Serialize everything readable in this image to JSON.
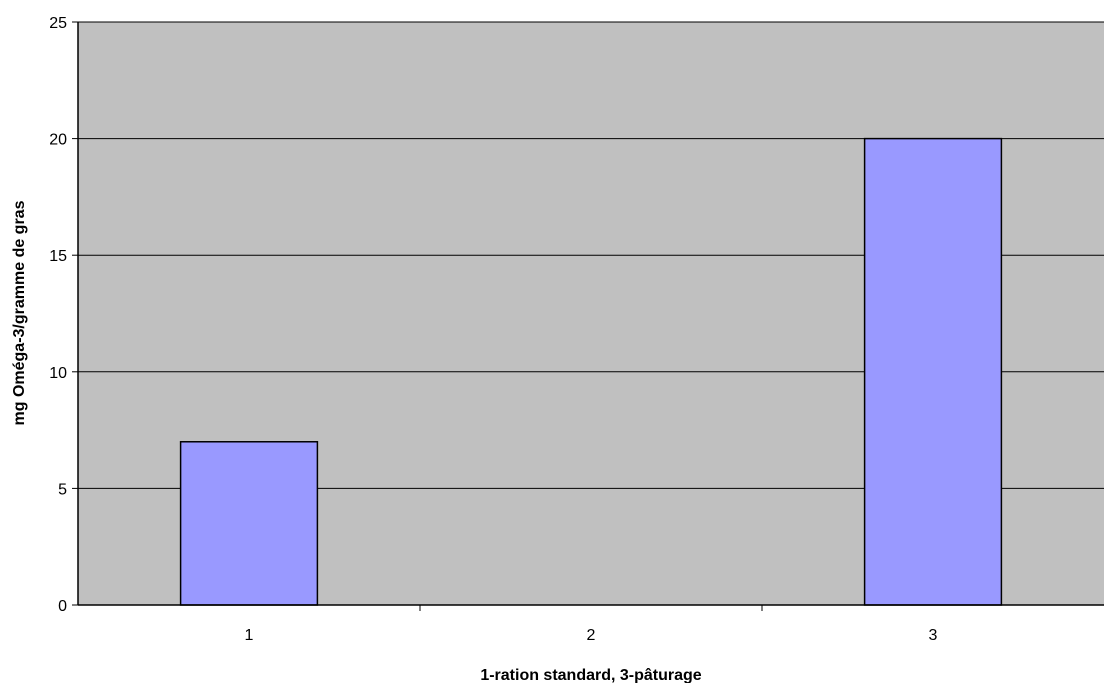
{
  "chart_data": {
    "type": "bar",
    "title": "",
    "xlabel": "1-ration standard, 3-pâturage",
    "ylabel": "mg Oméga-3/gramme de gras",
    "categories": [
      "1",
      "2",
      "3"
    ],
    "values": [
      7,
      0,
      20
    ],
    "ylim": [
      0,
      25
    ],
    "yticks": [
      "0",
      "5",
      "10",
      "15",
      "20",
      "25"
    ],
    "grid": "horizontal",
    "legend": "none",
    "colors": {
      "bar": "#9999ff",
      "bar_stroke": "#000000",
      "plot_background": "#c0c0c0",
      "grid": "#000000"
    }
  }
}
